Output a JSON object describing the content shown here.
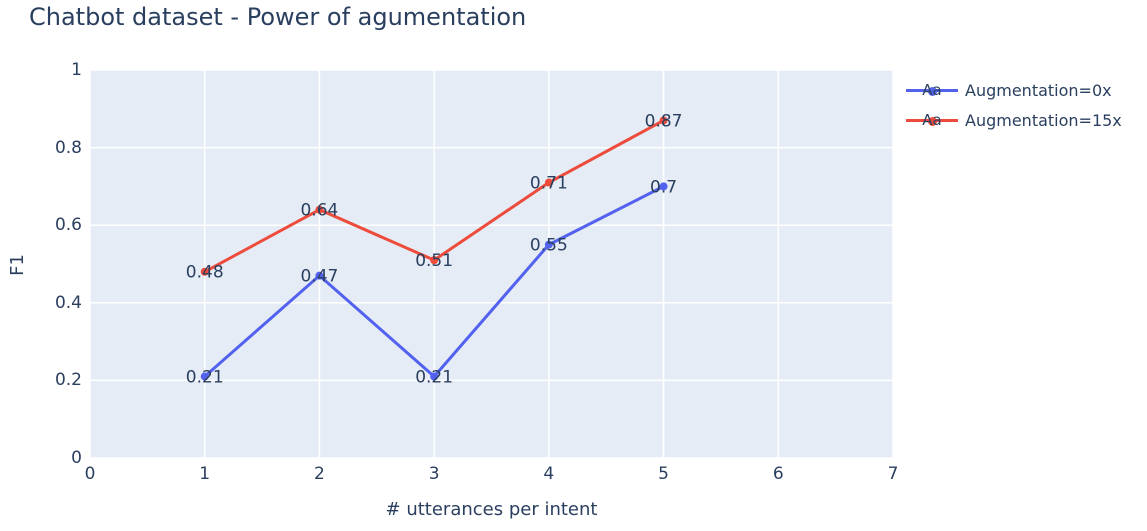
{
  "chart_data": {
    "type": "line",
    "title": "Chatbot dataset - Power of agumentation",
    "xlabel": "# utterances per intent",
    "ylabel": "F1",
    "xlim": [
      0,
      7
    ],
    "ylim": [
      0,
      1
    ],
    "x_tick_values": [
      0,
      1,
      2,
      3,
      4,
      5,
      6,
      7
    ],
    "x_tick_labels": [
      "0",
      "1",
      "2",
      "3",
      "4",
      "5",
      "6",
      "7"
    ],
    "y_tick_values": [
      0,
      0.2,
      0.4,
      0.6,
      0.8,
      1
    ],
    "y_tick_labels": [
      "0",
      "0.2",
      "0.4",
      "0.6",
      "0.8",
      "1"
    ],
    "grid": true,
    "legend_position": "top-right-outside",
    "legend_sample_text": "Aa",
    "x": [
      1,
      2,
      3,
      4,
      5
    ],
    "series": [
      {
        "name": "Augmentation=0x",
        "color": "#5262EF",
        "values": [
          0.21,
          0.47,
          0.21,
          0.55,
          0.7
        ],
        "labels": [
          "0.21",
          "0.47",
          "0.21",
          "0.55",
          "0.7"
        ]
      },
      {
        "name": "Augmentation=15x",
        "color": "#ED4B3B",
        "values": [
          0.48,
          0.64,
          0.51,
          0.71,
          0.87
        ],
        "labels": [
          "0.48",
          "0.64",
          "0.51",
          "0.71",
          "0.87"
        ]
      }
    ]
  },
  "colors": {
    "page_bg": "#FFFFFF",
    "plot_bg": "#E5ECF6",
    "grid": "#FFFFFF",
    "text": "#2A3F5F"
  }
}
